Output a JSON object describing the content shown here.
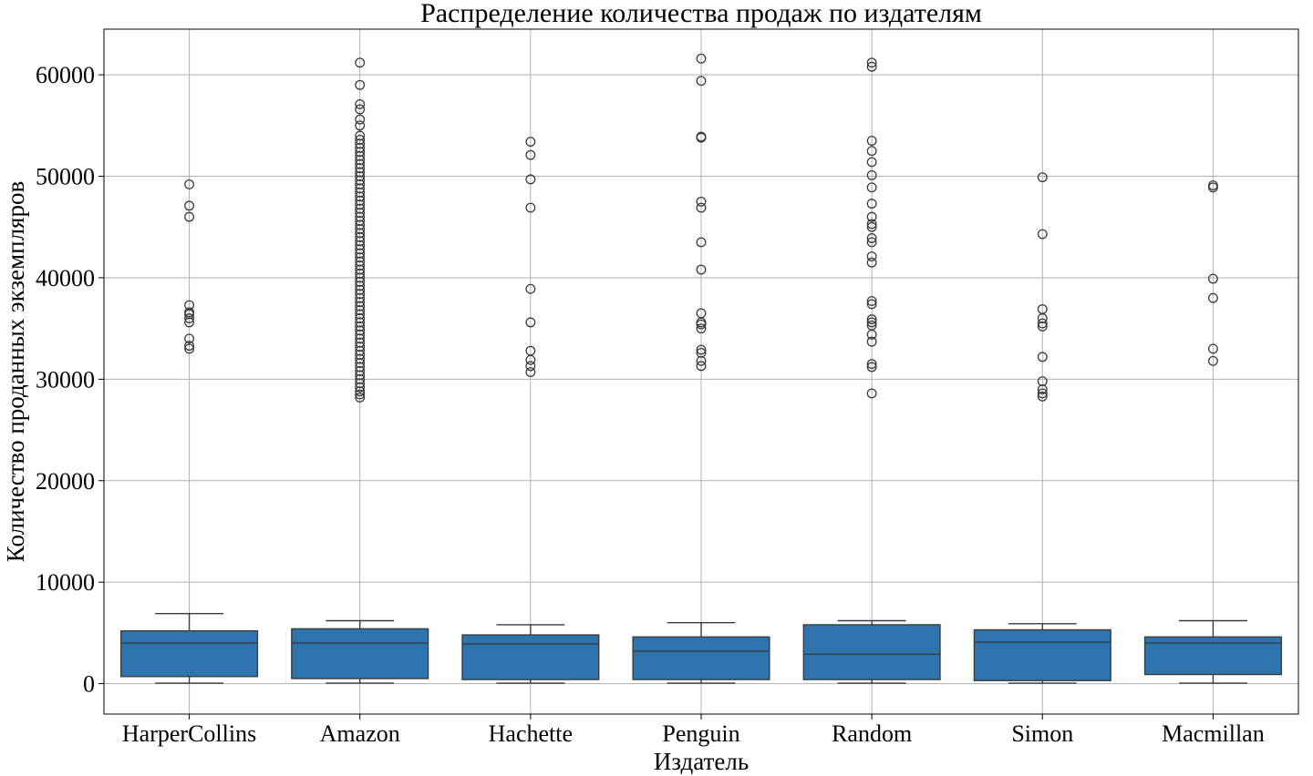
{
  "chart_data": {
    "type": "box",
    "title": "Распределение количества продаж по издателям",
    "xlabel": "Издатель",
    "ylabel": "Количество проданных экземпляров",
    "categories": [
      "HarperCollins",
      "Amazon",
      "Hachette",
      "Penguin",
      "Random",
      "Simon",
      "Macmillan"
    ],
    "ylim": [
      -3000,
      64500
    ],
    "yticks": [
      0,
      10000,
      20000,
      30000,
      40000,
      50000,
      60000
    ],
    "grid": true,
    "box_color": "#2e75b0",
    "line_color": "#3b3b3b",
    "boxes": [
      {
        "name": "HarperCollins",
        "whislo": 50,
        "q1": 700,
        "median": 4000,
        "q3": 5200,
        "whishi": 6900,
        "fliers": [
          33000,
          33300,
          34000,
          35600,
          36000,
          36400,
          36600,
          37300,
          46000,
          47100,
          49200
        ]
      },
      {
        "name": "Amazon",
        "whislo": 50,
        "q1": 500,
        "median": 4000,
        "q3": 5400,
        "whishi": 6200,
        "fliers": [
          28200,
          28500,
          28800,
          29200,
          29600,
          30000,
          30400,
          30800,
          31200,
          31600,
          32000,
          32400,
          32800,
          33200,
          33600,
          34000,
          34400,
          34800,
          35200,
          35600,
          36000,
          36400,
          36800,
          37200,
          37600,
          38000,
          38400,
          38800,
          39200,
          39600,
          40000,
          40400,
          40800,
          41200,
          41600,
          42000,
          42400,
          42800,
          43200,
          43600,
          44000,
          44400,
          44800,
          45200,
          45600,
          46000,
          46400,
          46800,
          47200,
          47600,
          48000,
          48400,
          48800,
          49200,
          49600,
          50000,
          50400,
          50800,
          51200,
          51600,
          52000,
          52400,
          52800,
          53200,
          53600,
          54000,
          55000,
          55600,
          56600,
          57100,
          59000,
          61200
        ]
      },
      {
        "name": "Hachette",
        "whislo": 50,
        "q1": 400,
        "median": 3900,
        "q3": 4800,
        "whishi": 5800,
        "fliers": [
          30700,
          31300,
          31900,
          32800,
          35600,
          38900,
          46900,
          49700,
          52100,
          53400
        ]
      },
      {
        "name": "Penguin",
        "whislo": 50,
        "q1": 400,
        "median": 3200,
        "q3": 4600,
        "whishi": 6000,
        "fliers": [
          31300,
          31800,
          32600,
          32900,
          35000,
          35400,
          35600,
          36500,
          40800,
          43500,
          46900,
          47500,
          53800,
          53900,
          59400,
          61600
        ]
      },
      {
        "name": "Random",
        "whislo": 50,
        "q1": 400,
        "median": 2900,
        "q3": 5800,
        "whishi": 6200,
        "fliers": [
          28600,
          31200,
          31500,
          33700,
          34400,
          35300,
          35600,
          35900,
          37400,
          37700,
          41500,
          42100,
          43500,
          43900,
          45000,
          45300,
          46000,
          47300,
          48900,
          50100,
          51400,
          52500,
          53500,
          60800,
          61200
        ]
      },
      {
        "name": "Simon",
        "whislo": 50,
        "q1": 300,
        "median": 4100,
        "q3": 5300,
        "whishi": 5900,
        "fliers": [
          28300,
          28600,
          29000,
          29800,
          32200,
          35200,
          35500,
          36000,
          36900,
          44300,
          49900
        ]
      },
      {
        "name": "Macmillan",
        "whislo": 50,
        "q1": 900,
        "median": 4000,
        "q3": 4600,
        "whishi": 6200,
        "fliers": [
          31800,
          33000,
          38000,
          39900,
          48900,
          49100
        ]
      }
    ]
  }
}
